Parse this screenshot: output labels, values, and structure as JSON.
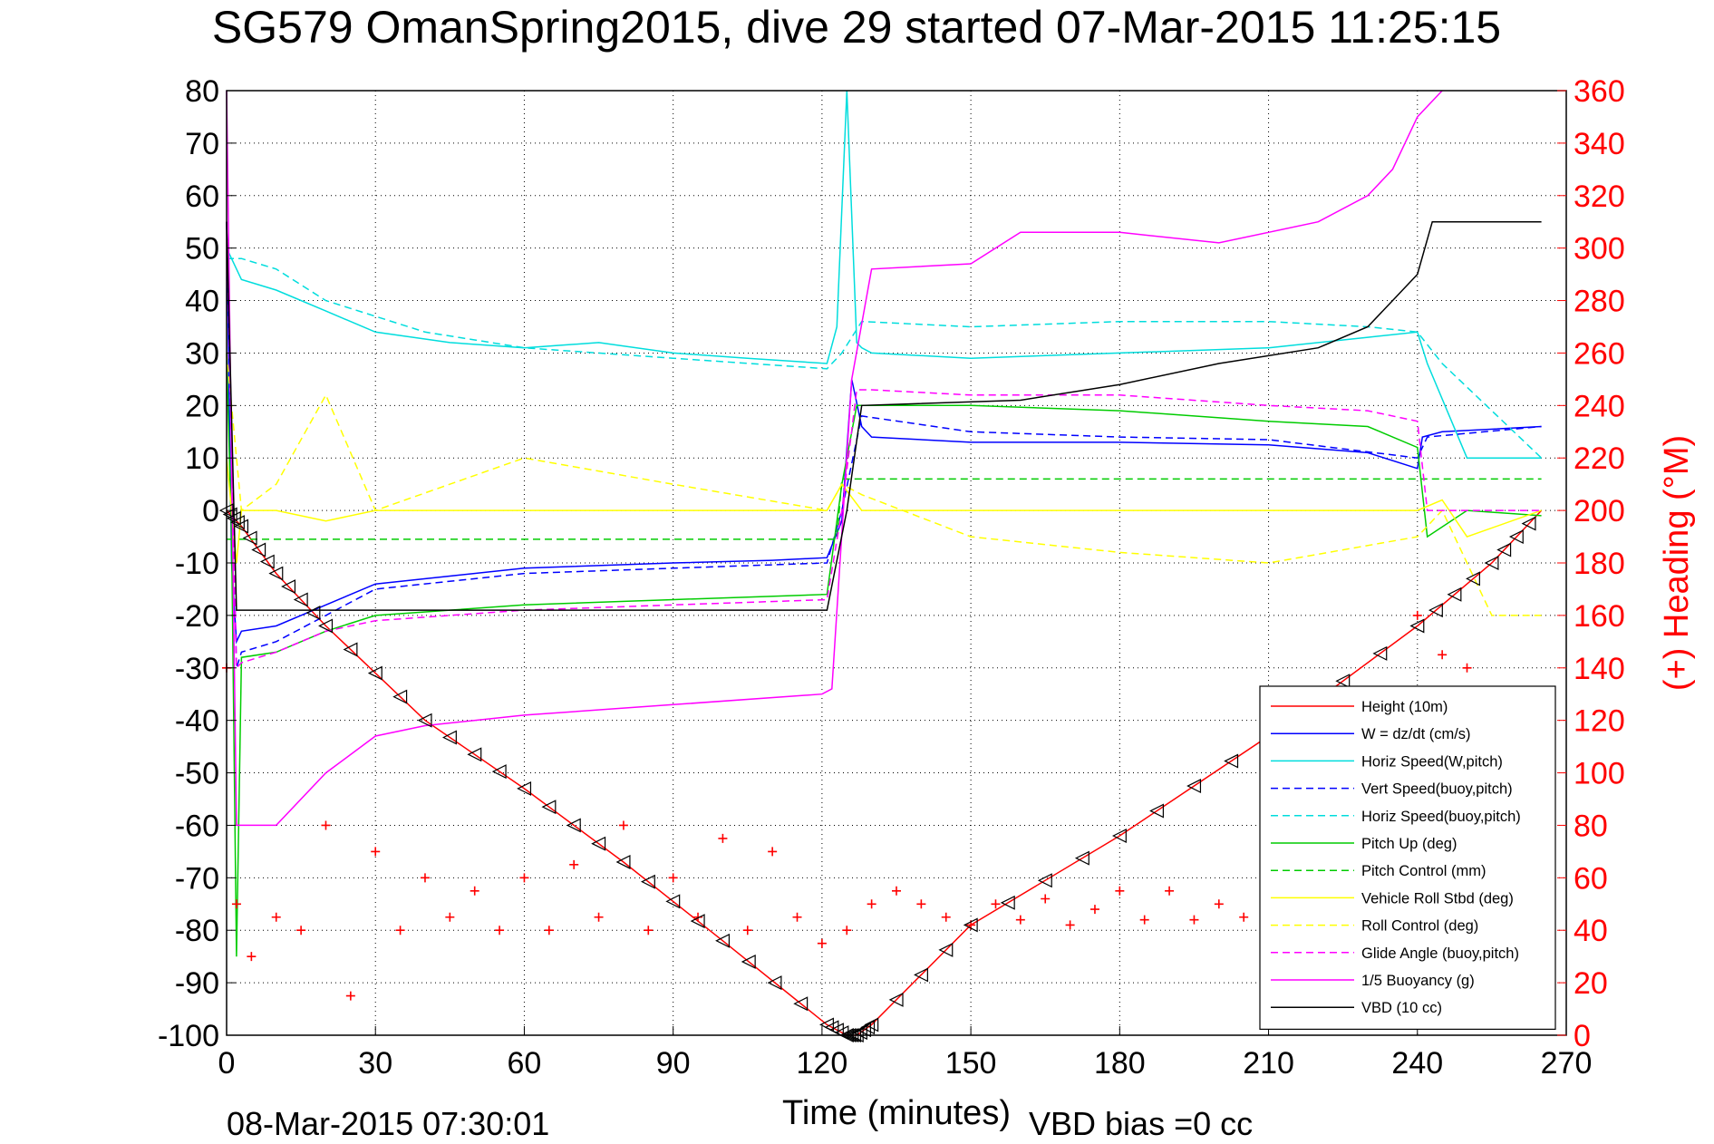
{
  "chart_data": {
    "type": "line",
    "title": "SG579 OmanSpring2015, dive 29 started 07-Mar-2015 11:25:15",
    "xlabel": "Time (minutes)",
    "ylabel": "",
    "y2label": "(+) Heading (°M)",
    "footer_left": "08-Mar-2015 07:30:01",
    "footer_right": "VBD bias =0 cc",
    "xlim": [
      0,
      270
    ],
    "ylim": [
      -100,
      80
    ],
    "y2lim": [
      0,
      360
    ],
    "xticks": [
      "0",
      "30",
      "60",
      "90",
      "120",
      "150",
      "180",
      "210",
      "240",
      "270"
    ],
    "yticks": [
      "80",
      "70",
      "60",
      "50",
      "40",
      "30",
      "20",
      "10",
      "0",
      "-10",
      "-20",
      "-30",
      "-40",
      "-50",
      "-60",
      "-70",
      "-80",
      "-90",
      "-100"
    ],
    "y2ticks": [
      "360",
      "340",
      "320",
      "300",
      "280",
      "260",
      "240",
      "220",
      "200",
      "180",
      "160",
      "140",
      "120",
      "100",
      "80",
      "60",
      "40",
      "20",
      "0"
    ],
    "grid": true,
    "legend_position": "bottom-right",
    "series": [
      {
        "name": "Height (10m)",
        "color": "#ff0000",
        "style": "solid",
        "x": [
          0,
          3,
          10,
          20,
          40,
          60,
          80,
          100,
          121,
          125,
          127,
          130,
          150,
          180,
          210,
          240,
          255,
          265
        ],
        "y": [
          0,
          -3,
          -12,
          -22,
          -40,
          -53,
          -67,
          -82,
          -98,
          -100,
          -100,
          -98,
          -79,
          -62,
          -43,
          -22,
          -10,
          0
        ]
      },
      {
        "name": "W = dz/dt (cm/s)",
        "color": "#0000ff",
        "style": "solid",
        "x": [
          0,
          1,
          2,
          3,
          10,
          20,
          30,
          60,
          90,
          110,
          121,
          124,
          126,
          128,
          130,
          150,
          180,
          210,
          230,
          240,
          241,
          245,
          265
        ],
        "y": [
          55,
          -10,
          -25,
          -23,
          -22,
          -18,
          -14,
          -11,
          -10,
          -9.5,
          -9,
          -2,
          25,
          16,
          14,
          13,
          13,
          12.5,
          11,
          8,
          14,
          15,
          16
        ]
      },
      {
        "name": "Horiz Speed(W,pitch)",
        "color": "#00dddd",
        "style": "solid",
        "x": [
          0,
          3,
          10,
          20,
          30,
          45,
          60,
          75,
          90,
          105,
          121,
          123,
          125,
          127,
          128,
          130,
          150,
          180,
          210,
          230,
          240,
          242,
          250,
          265
        ],
        "y": [
          50,
          44,
          42,
          38,
          34,
          32,
          31,
          32,
          30,
          29,
          28,
          35,
          80,
          32,
          31,
          30,
          29,
          30,
          31,
          33,
          34,
          28,
          10,
          10
        ]
      },
      {
        "name": "Vert Speed(buoy,pitch)",
        "color": "#0000ff",
        "style": "dashed",
        "x": [
          0,
          2,
          3,
          10,
          20,
          30,
          60,
          90,
          121,
          124,
          128,
          150,
          180,
          210,
          240,
          242,
          265
        ],
        "y": [
          55,
          -30,
          -27,
          -25,
          -20,
          -15,
          -12,
          -11,
          -10,
          0,
          18,
          15,
          14,
          13.5,
          10,
          14,
          16
        ]
      },
      {
        "name": "Horiz Speed(buoy,pitch)",
        "color": "#00dddd",
        "style": "dashed",
        "x": [
          0,
          3,
          10,
          20,
          40,
          60,
          90,
          121,
          124,
          128,
          150,
          180,
          210,
          230,
          240,
          245,
          265
        ],
        "y": [
          48,
          48,
          46,
          40,
          34,
          31,
          29,
          27,
          30,
          36,
          35,
          36,
          36,
          35,
          34,
          28,
          10
        ]
      },
      {
        "name": "Pitch Up (deg)",
        "color": "#00cc00",
        "style": "solid",
        "x": [
          0,
          1,
          2,
          3,
          10,
          20,
          30,
          60,
          90,
          121,
          124,
          127,
          130,
          150,
          180,
          210,
          230,
          240,
          242,
          250,
          265
        ],
        "y": [
          30,
          -5,
          -85,
          -28,
          -27,
          -23,
          -20,
          -18,
          -17,
          -16,
          5,
          20,
          20,
          20,
          19,
          17,
          16,
          12,
          -5,
          0,
          -1
        ]
      },
      {
        "name": "Pitch Control (mm)",
        "color": "#00cc00",
        "style": "dashed",
        "x": [
          0,
          123,
          124,
          265
        ],
        "y": [
          -5.5,
          -5.5,
          6,
          6
        ]
      },
      {
        "name": "Vehicle Roll Stbd (deg)",
        "color": "#ffff00",
        "style": "solid",
        "x": [
          0,
          2,
          3,
          10,
          20,
          30,
          60,
          90,
          121,
          124,
          128,
          150,
          180,
          210,
          240,
          245,
          250,
          265
        ],
        "y": [
          10,
          -10,
          0,
          0,
          -2,
          0,
          0,
          0,
          0,
          5,
          0,
          0,
          0,
          0,
          0,
          2,
          -5,
          0
        ]
      },
      {
        "name": "Roll Control (deg)",
        "color": "#ffff00",
        "style": "dashed",
        "x": [
          0,
          3,
          10,
          20,
          30,
          60,
          90,
          121,
          124,
          128,
          150,
          180,
          210,
          240,
          245,
          255,
          265
        ],
        "y": [
          30,
          0,
          5,
          22,
          0,
          10,
          5,
          0,
          5,
          3,
          -5,
          -8,
          -10,
          -5,
          0,
          -20,
          -20
        ]
      },
      {
        "name": "Glide Angle (buoy,pitch)",
        "color": "#ff00ff",
        "style": "dashed",
        "x": [
          0,
          2,
          3,
          10,
          20,
          30,
          60,
          90,
          121,
          124,
          127,
          130,
          150,
          180,
          210,
          230,
          240,
          242,
          265
        ],
        "y": [
          55,
          -30,
          -29,
          -27,
          -23,
          -21,
          -19,
          -18,
          -17,
          0,
          23,
          23,
          22,
          22,
          20,
          19,
          17,
          0,
          0
        ]
      },
      {
        "name": "1/5 Buoyancy (g)",
        "color": "#ff00ff",
        "style": "solid",
        "x": [
          0,
          2,
          10,
          20,
          30,
          40,
          60,
          90,
          120,
          122,
          126,
          130,
          150,
          160,
          180,
          200,
          210,
          220,
          230,
          235,
          240,
          245
        ],
        "y": [
          80,
          -60,
          -60,
          -50,
          -43,
          -41,
          -39,
          -37,
          -35,
          -34,
          25,
          46,
          47,
          53,
          53,
          51,
          53,
          55,
          60,
          65,
          75,
          80
        ]
      },
      {
        "name": "VBD (10 cc)",
        "color": "#000000",
        "style": "solid",
        "x": [
          0,
          2,
          3,
          121,
          125,
          128,
          160,
          180,
          200,
          220,
          230,
          235,
          240,
          243,
          265
        ],
        "y": [
          55,
          -19,
          -19,
          -19,
          0,
          20,
          21,
          24,
          28,
          31,
          35,
          40,
          45,
          55,
          55
        ]
      },
      {
        "name": "Heading",
        "color": "#ff0000",
        "style": "markers",
        "axis": "right",
        "x": [
          0,
          2,
          5,
          10,
          15,
          20,
          25,
          30,
          35,
          40,
          45,
          50,
          55,
          60,
          65,
          70,
          75,
          80,
          85,
          90,
          95,
          100,
          105,
          110,
          115,
          120,
          125,
          130,
          135,
          140,
          145,
          150,
          155,
          160,
          165,
          170,
          175,
          180,
          185,
          190,
          195,
          200,
          205,
          210,
          215,
          220,
          225,
          230,
          235,
          240,
          245,
          250
        ],
        "y": [
          140,
          50,
          30,
          45,
          40,
          80,
          15,
          70,
          40,
          60,
          45,
          55,
          40,
          60,
          40,
          65,
          45,
          80,
          40,
          60,
          45,
          75,
          40,
          70,
          45,
          35,
          40,
          50,
          55,
          50,
          45,
          42,
          50,
          44,
          52,
          42,
          48,
          55,
          44,
          55,
          44,
          50,
          45,
          60,
          44,
          55,
          40,
          50,
          120,
          160,
          145,
          140
        ]
      }
    ],
    "dive_markers": {
      "symbol": "triangle-left",
      "color": "#000000",
      "follows": "Height (10m)"
    }
  }
}
